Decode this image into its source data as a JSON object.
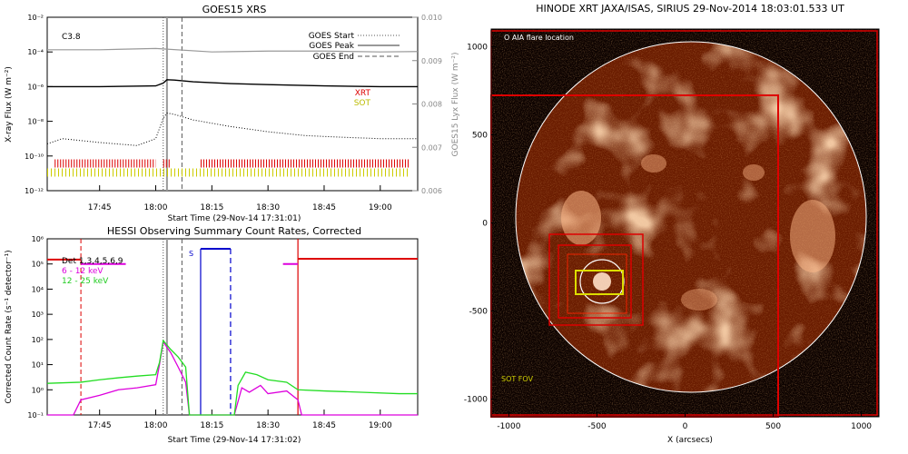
{
  "chart_data": [
    {
      "type": "line",
      "title": "GOES15 XRS",
      "xlabel": "Start Time (29-Nov-14 17:31:01)",
      "ylabel": "X-ray Flux (W m⁻²)",
      "y2label": "GOES15 Lyx Flux (W m⁻²)",
      "y_scale": "log",
      "xlim": [
        "17:31",
        "19:10"
      ],
      "ylim": [
        1e-12,
        0.01
      ],
      "y2lim": [
        0.006,
        0.01
      ],
      "x_ticks": [
        "17:45",
        "18:00",
        "18:15",
        "18:30",
        "18:45",
        "19:00"
      ],
      "y_ticks": [
        "10⁻¹²",
        "10⁻¹⁰",
        "10⁻⁸",
        "10⁻⁶",
        "10⁻⁴",
        "10⁻²"
      ],
      "y2_ticks": [
        "0.006",
        "0.007",
        "0.008",
        "0.009",
        "0.010"
      ],
      "annotation": "C3.8",
      "legend": [
        "GOES Start",
        "GOES Peak",
        "GOES End"
      ],
      "labels": [
        "XRT",
        "SOT"
      ],
      "series": [
        {
          "name": "",
          "x": [
            "17:31",
            "17:45",
            "18:00",
            "18:02",
            "18:03",
            "18:05",
            "18:10",
            "18:20",
            "18:30",
            "18:45",
            "19:00",
            "19:10"
          ],
          "y": [
            1e-06,
            1e-06,
            1.1e-06,
            1.6e-06,
            2.5e-06,
            2.4e-06,
            1.9e-06,
            1.5e-06,
            1.3e-06,
            1.1e-06,
            1e-06,
            1e-06
          ]
        },
        {
          "name": "",
          "x": [
            "17:31",
            "17:35",
            "17:45",
            "17:55",
            "18:00",
            "18:02",
            "18:03",
            "18:05",
            "18:10",
            "18:20",
            "18:30",
            "18:40",
            "18:50",
            "19:00",
            "19:10"
          ],
          "y": [
            5e-10,
            1e-09,
            6e-10,
            4e-10,
            1e-09,
            1.5e-08,
            3e-08,
            2.5e-08,
            1.2e-08,
            5e-09,
            2.5e-09,
            1.5e-09,
            1.2e-09,
            1e-09,
            1e-09
          ]
        },
        {
          "name": "",
          "x": [
            "17:31",
            "17:45",
            "18:00",
            "18:15",
            "18:30",
            "18:45",
            "19:00",
            "19:10"
          ],
          "y": [
            0.00925,
            0.00925,
            0.00928,
            0.0092,
            0.00922,
            0.00922,
            0.0092,
            0.00921
          ]
        }
      ],
      "markers": {
        "start": "18:02",
        "peak": "18:03",
        "end": "18:07"
      }
    },
    {
      "type": "line",
      "title": "HESSI Observing Summary Count Rates, Corrected",
      "xlabel": "Start Time (29-Nov-14 17:31:02)",
      "ylabel": "Corrected Count Rate (s⁻¹ detector⁻¹)",
      "y_scale": "log",
      "xlim": [
        "17:31",
        "19:10"
      ],
      "ylim": [
        0.1,
        1000000.0
      ],
      "x_ticks": [
        "17:45",
        "18:00",
        "18:15",
        "18:30",
        "18:45",
        "19:00"
      ],
      "y_ticks": [
        "10⁻¹",
        "10⁰",
        "10¹",
        "10²",
        "10³",
        "10⁴",
        "10⁵",
        "10⁶"
      ],
      "legend": [
        "Det 1,3,4,5,6,9",
        "6 - 12 keV",
        "12 - 25 keV"
      ],
      "annotation": "S",
      "series": [
        {
          "name": "6 - 12 keV",
          "x": [
            "17:31",
            "17:38",
            "17:40",
            "17:45",
            "17:50",
            "17:55",
            "18:00",
            "18:01",
            "18:02",
            "18:04",
            "18:06",
            "18:08",
            "18:09",
            "18:21",
            "18:23",
            "18:25",
            "18:28",
            "18:30",
            "18:35",
            "18:38",
            "18:39",
            "19:10"
          ],
          "y": [
            0.1,
            0.1,
            0.4,
            0.6,
            1.0,
            1.2,
            1.6,
            10,
            80,
            30,
            8,
            2,
            0.1,
            0.1,
            1.2,
            0.8,
            1.5,
            0.7,
            0.9,
            0.4,
            0.1,
            0.1
          ]
        },
        {
          "name": "12 - 25 keV",
          "x": [
            "17:31",
            "17:40",
            "17:45",
            "17:50",
            "17:55",
            "18:00",
            "18:01",
            "18:02",
            "18:04",
            "18:06",
            "18:08",
            "18:09",
            "18:21",
            "18:22",
            "18:24",
            "18:27",
            "18:30",
            "18:35",
            "18:38",
            "18:45",
            "18:55",
            "19:05",
            "19:10"
          ],
          "y": [
            1.8,
            2.0,
            2.5,
            3.0,
            3.5,
            4.0,
            12,
            90,
            40,
            20,
            8,
            0.1,
            0.1,
            1.5,
            5,
            4,
            2.5,
            2,
            1.0,
            0.9,
            0.8,
            0.7,
            0.7
          ]
        }
      ],
      "attenuator": [
        {
          "x": [
            "17:31",
            "17:40"
          ],
          "y": 150000.0
        },
        {
          "x": [
            "18:38",
            "19:10"
          ],
          "y": 160000.0
        }
      ],
      "magenta_segments": [
        {
          "x": [
            "17:40",
            "17:52"
          ],
          "y": 100000.0
        },
        {
          "x": [
            "18:34",
            "18:38"
          ],
          "y": 100000.0
        }
      ],
      "saa": {
        "x": [
          "18:12",
          "18:20"
        ],
        "y": 400000.0
      }
    },
    {
      "type": "image",
      "title": "HINODE XRT JAXA/ISAS, SIRIUS 29-Nov-2014 18:03:01.533 UT",
      "xlabel": "X (arcsecs)",
      "ylabel": "",
      "xlim": [
        -1100,
        1100
      ],
      "ylim": [
        -1100,
        1100
      ],
      "x_ticks": [
        "-1000",
        "-500",
        "0",
        "500",
        "1000"
      ],
      "y_ticks": [
        "-1000",
        "-500",
        "0",
        "500",
        "1000"
      ],
      "legend": [
        "O AIA flare location"
      ],
      "labels": [
        "SOT FOV"
      ]
    }
  ],
  "colors": {
    "red": "#dd0000",
    "magenta": "#dd00dd",
    "green": "#22dd22",
    "blue": "#0000cc",
    "yellow": "#cccc00",
    "grey": "#999999",
    "sun": "#c04000"
  }
}
